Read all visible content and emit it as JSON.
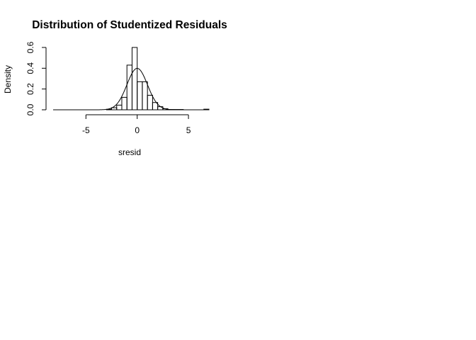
{
  "chart_data": {
    "type": "histogram",
    "title": "Distribution of Studentized Residuals",
    "xlabel": "sresid",
    "ylabel": "Density",
    "xlim": [
      -8.2,
      7.0
    ],
    "ylim": [
      0,
      0.6
    ],
    "x_ticks": [
      -5,
      0,
      5
    ],
    "x_tick_labels": [
      "-5",
      "0",
      "5"
    ],
    "y_ticks": [
      0.0,
      0.2,
      0.4,
      0.6
    ],
    "y_tick_labels": [
      "0.0",
      "0.2",
      "0.4",
      "0.6"
    ],
    "bin_width": 0.5,
    "bins": [
      {
        "x0": -8.0,
        "x1": -7.5,
        "density": 0.0
      },
      {
        "x0": -7.5,
        "x1": -3.0,
        "density": 0.0
      },
      {
        "x0": -3.0,
        "x1": -2.5,
        "density": 0.005
      },
      {
        "x0": -2.5,
        "x1": -2.0,
        "density": 0.02
      },
      {
        "x0": -2.0,
        "x1": -1.5,
        "density": 0.045
      },
      {
        "x0": -1.5,
        "x1": -1.0,
        "density": 0.12
      },
      {
        "x0": -1.0,
        "x1": -0.5,
        "density": 0.43
      },
      {
        "x0": -0.5,
        "x1": 0.0,
        "density": 0.6
      },
      {
        "x0": 0.0,
        "x1": 0.5,
        "density": 0.27
      },
      {
        "x0": 0.5,
        "x1": 1.0,
        "density": 0.27
      },
      {
        "x0": 1.0,
        "x1": 1.5,
        "density": 0.14
      },
      {
        "x0": 1.5,
        "x1": 2.0,
        "density": 0.07
      },
      {
        "x0": 2.0,
        "x1": 2.5,
        "density": 0.03
      },
      {
        "x0": 2.5,
        "x1": 3.0,
        "density": 0.01
      },
      {
        "x0": 3.0,
        "x1": 4.5,
        "density": 0.003
      },
      {
        "x0": 6.5,
        "x1": 7.0,
        "density": 0.006
      }
    ],
    "overlay": {
      "type": "normal-density-curve",
      "mean": 0,
      "sd": 1
    },
    "grid": false,
    "legend": "none"
  }
}
